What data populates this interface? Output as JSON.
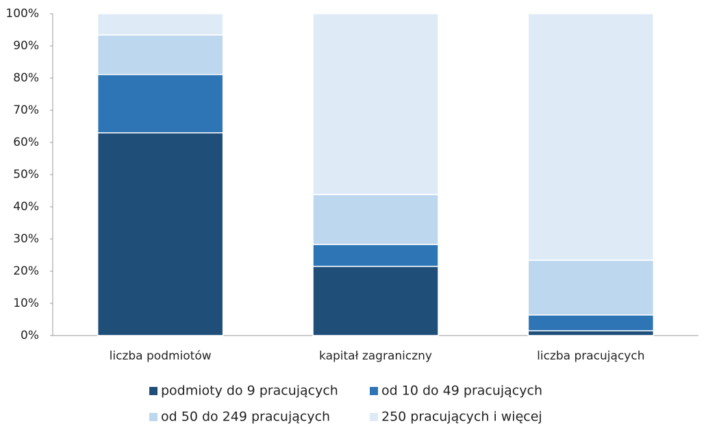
{
  "chart_data": {
    "type": "stacked_bar",
    "categories": [
      "liczba podmiotów",
      "kapitał zagraniczny",
      "liczba pracujących"
    ],
    "series": [
      {
        "name": "podmioty do 9 pracujących",
        "color": "#1f4e79",
        "values": [
          63.0,
          21.5,
          1.5
        ]
      },
      {
        "name": "od 10 do 49 pracujących",
        "color": "#2e75b6",
        "values": [
          18.1,
          6.8,
          4.9
        ]
      },
      {
        "name": "od 50 do 249 pracujących",
        "color": "#bdd7ee",
        "values": [
          12.3,
          15.5,
          17.0
        ]
      },
      {
        "name": "250 pracujących i więcej",
        "color": "#deebf7",
        "values": [
          6.6,
          56.2,
          76.6
        ]
      }
    ],
    "ylim": [
      0,
      100
    ],
    "yticks": [
      {
        "value": 0,
        "label": "0%"
      },
      {
        "value": 10,
        "label": "10%"
      },
      {
        "value": 20,
        "label": "20%"
      },
      {
        "value": 30,
        "label": "30%"
      },
      {
        "value": 40,
        "label": "40%"
      },
      {
        "value": 50,
        "label": "50%"
      },
      {
        "value": 60,
        "label": "60%"
      },
      {
        "value": 70,
        "label": "70%"
      },
      {
        "value": 80,
        "label": "80%"
      },
      {
        "value": 90,
        "label": "90%"
      },
      {
        "value": 100,
        "label": "100%"
      }
    ],
    "legend": "bottom"
  }
}
